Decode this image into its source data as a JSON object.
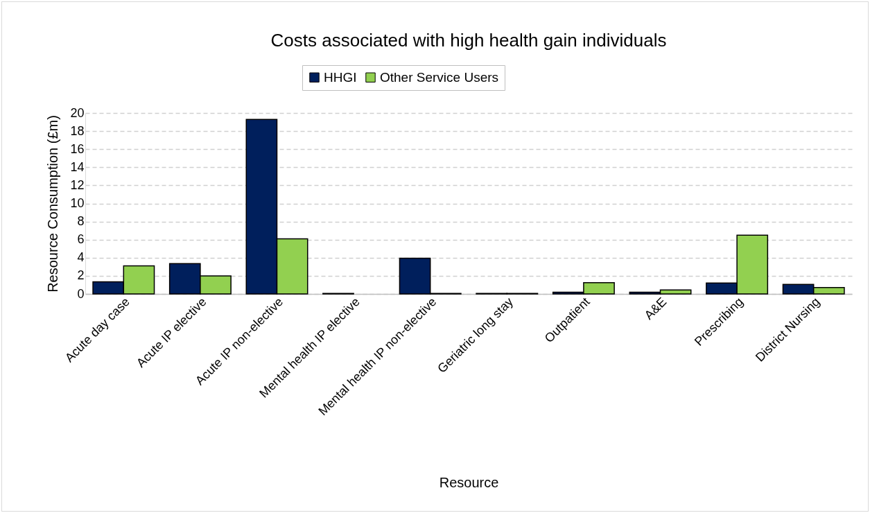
{
  "chart_data": {
    "type": "bar",
    "title": "Costs associated with high health gain individuals",
    "xlabel": "Resource",
    "ylabel": "Resource Consumption (£m)",
    "categories": [
      "Acute day case",
      "Acute IP elective",
      "Acute IP non-elective",
      "Mental health IP elective",
      "Mental health IP non-elective",
      "Geriatric long stay",
      "Outpatient",
      "A&E",
      "Prescribing",
      "District Nursing"
    ],
    "series": [
      {
        "name": "HHGI",
        "color": "#001f5c",
        "values": [
          1.35,
          3.35,
          19.3,
          0.05,
          3.95,
          0.05,
          0.2,
          0.2,
          1.2,
          1.05
        ]
      },
      {
        "name": "Other Service Users",
        "color": "#92d050",
        "values": [
          3.1,
          2.0,
          6.1,
          null,
          0.05,
          0.05,
          1.25,
          0.45,
          6.5,
          0.7
        ]
      }
    ],
    "ylim": [
      0,
      20
    ],
    "yticks": [
      0,
      2,
      4,
      6,
      8,
      10,
      12,
      14,
      16,
      18,
      20
    ],
    "grid": "y",
    "legend": "top"
  }
}
